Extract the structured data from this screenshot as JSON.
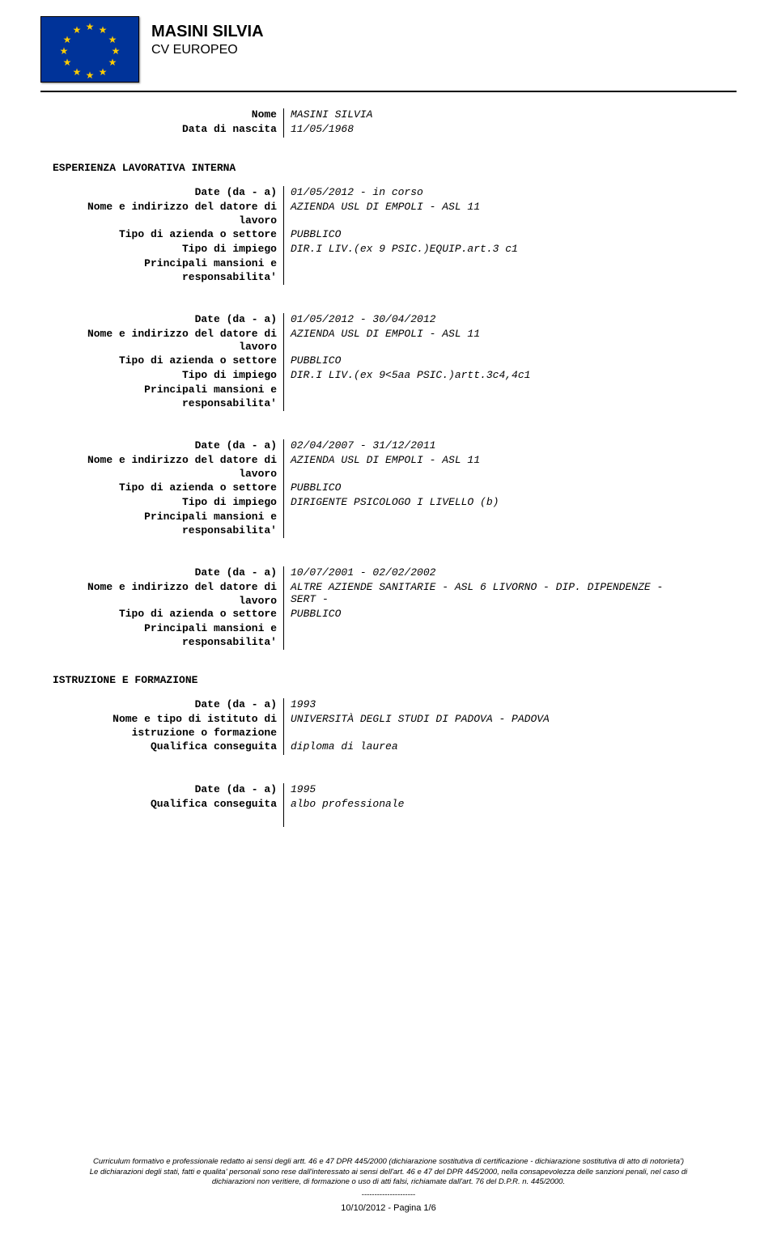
{
  "header": {
    "name": "MASINI SILVIA",
    "subtitle": "CV EUROPEO"
  },
  "flag": {
    "bg_color": "#003399",
    "star_color": "#FFCC00"
  },
  "top_rows": [
    {
      "label": "Nome",
      "value": "MASINI SILVIA"
    },
    {
      "label": "Data di nascita",
      "value": "11/05/1968"
    }
  ],
  "section_1_title": "ESPERIENZA LAVORATIVA INTERNA",
  "experience": [
    {
      "rows": [
        {
          "label": "Date (da - a)",
          "value": "01/05/2012 - in corso"
        },
        {
          "label": "Nome e indirizzo del datore di\nlavoro",
          "value": "AZIENDA USL DI EMPOLI - ASL 11"
        },
        {
          "label": "Tipo di azienda o settore",
          "value": "PUBBLICO"
        },
        {
          "label": "Tipo di impiego",
          "value": "DIR.I LIV.(ex 9 PSIC.)EQUIP.art.3 c1"
        },
        {
          "label": "Principali mansioni e\nresponsabilita'",
          "value": ""
        }
      ]
    },
    {
      "rows": [
        {
          "label": "Date (da - a)",
          "value": "01/05/2012 - 30/04/2012"
        },
        {
          "label": "Nome e indirizzo del datore di\nlavoro",
          "value": "AZIENDA USL DI EMPOLI - ASL 11"
        },
        {
          "label": "Tipo di azienda o settore",
          "value": "PUBBLICO"
        },
        {
          "label": "Tipo di impiego",
          "value": "DIR.I LIV.(ex 9<5aa PSIC.)artt.3c4,4c1"
        },
        {
          "label": "Principali mansioni e\nresponsabilita'",
          "value": ""
        }
      ]
    },
    {
      "rows": [
        {
          "label": "Date (da - a)",
          "value": "02/04/2007 - 31/12/2011"
        },
        {
          "label": "Nome e indirizzo del datore di\nlavoro",
          "value": "AZIENDA USL DI EMPOLI - ASL 11"
        },
        {
          "label": "Tipo di azienda o settore",
          "value": "PUBBLICO"
        },
        {
          "label": "Tipo di impiego",
          "value": "DIRIGENTE PSICOLOGO I LIVELLO (b)"
        },
        {
          "label": "Principali mansioni e\nresponsabilita'",
          "value": ""
        }
      ]
    },
    {
      "rows": [
        {
          "label": "Date (da - a)",
          "value": "10/07/2001 - 02/02/2002"
        },
        {
          "label": "Nome e indirizzo del datore di\nlavoro",
          "value": "ALTRE AZIENDE SANITARIE - ASL 6 LIVORNO - DIP. DIPENDENZE -\nSERT -"
        },
        {
          "label": "Tipo di azienda o settore",
          "value": "PUBBLICO"
        },
        {
          "label": "Principali mansioni e\nresponsabilita'",
          "value": ""
        }
      ]
    }
  ],
  "section_2_title": "ISTRUZIONE E FORMAZIONE",
  "education": [
    {
      "rows": [
        {
          "label": "Date (da - a)",
          "value": "1993"
        },
        {
          "label": "Nome e tipo di istituto di\nistruzione o formazione",
          "value": "UNIVERSITÀ DEGLI STUDI DI PADOVA - PADOVA"
        },
        {
          "label": "Qualifica conseguita",
          "value": "diploma di laurea"
        }
      ]
    },
    {
      "rows": [
        {
          "label": "Date (da - a)",
          "value": "1995"
        },
        {
          "label": "Qualifica conseguita",
          "value": "albo professionale"
        }
      ]
    }
  ],
  "footer": {
    "line1": "Curriculum formativo e professionale redatto ai sensi degli artt. 46 e 47 DPR 445/2000 (dichiarazione sostitutiva di certificazione - dichiarazione sostitutiva di atto di notorieta')",
    "line2": "Le dichiarazioni degli stati, fatti e qualita' personali sono rese dall'interessato ai sensi dell'art. 46 e 47 del DPR 445/2000, nella consapevolezza delle sanzioni penali, nel caso di",
    "line3": "dichiarazioni non veritiere, di formazione o uso di atti falsi, richiamate dall'art. 76 del D.P.R. n. 445/2000.",
    "dashes": "---------------------",
    "page": "10/10/2012 - Pagina 1/6"
  }
}
